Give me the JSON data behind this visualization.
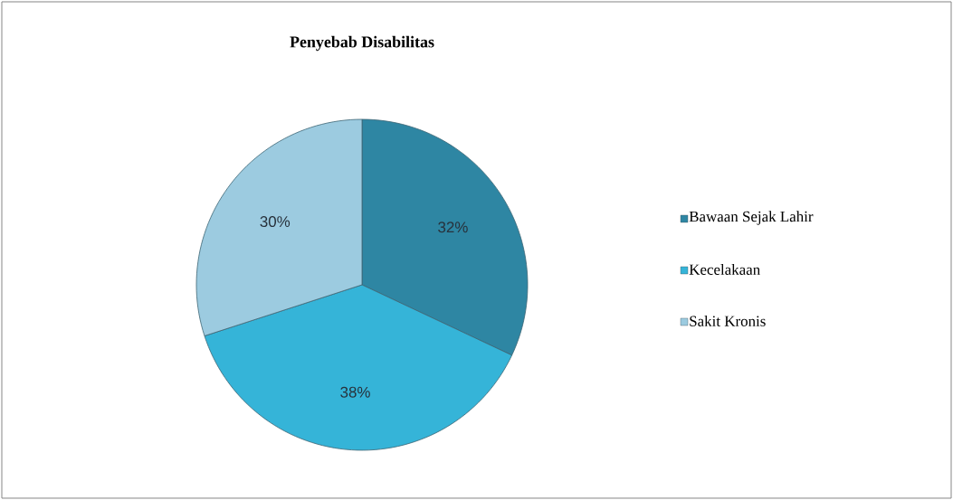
{
  "chart_data": {
    "type": "pie",
    "title": "Penyebab Disabilitas",
    "categories": [
      "Bawaan Sejak Lahir",
      "Kecelakaan",
      "Sakit Kronis"
    ],
    "values": [
      32,
      38,
      30
    ],
    "colors": [
      "#2e86a3",
      "#35b4d8",
      "#9ccbe0"
    ],
    "value_labels": [
      "32%",
      "38%",
      "30%"
    ],
    "legend": "right"
  }
}
